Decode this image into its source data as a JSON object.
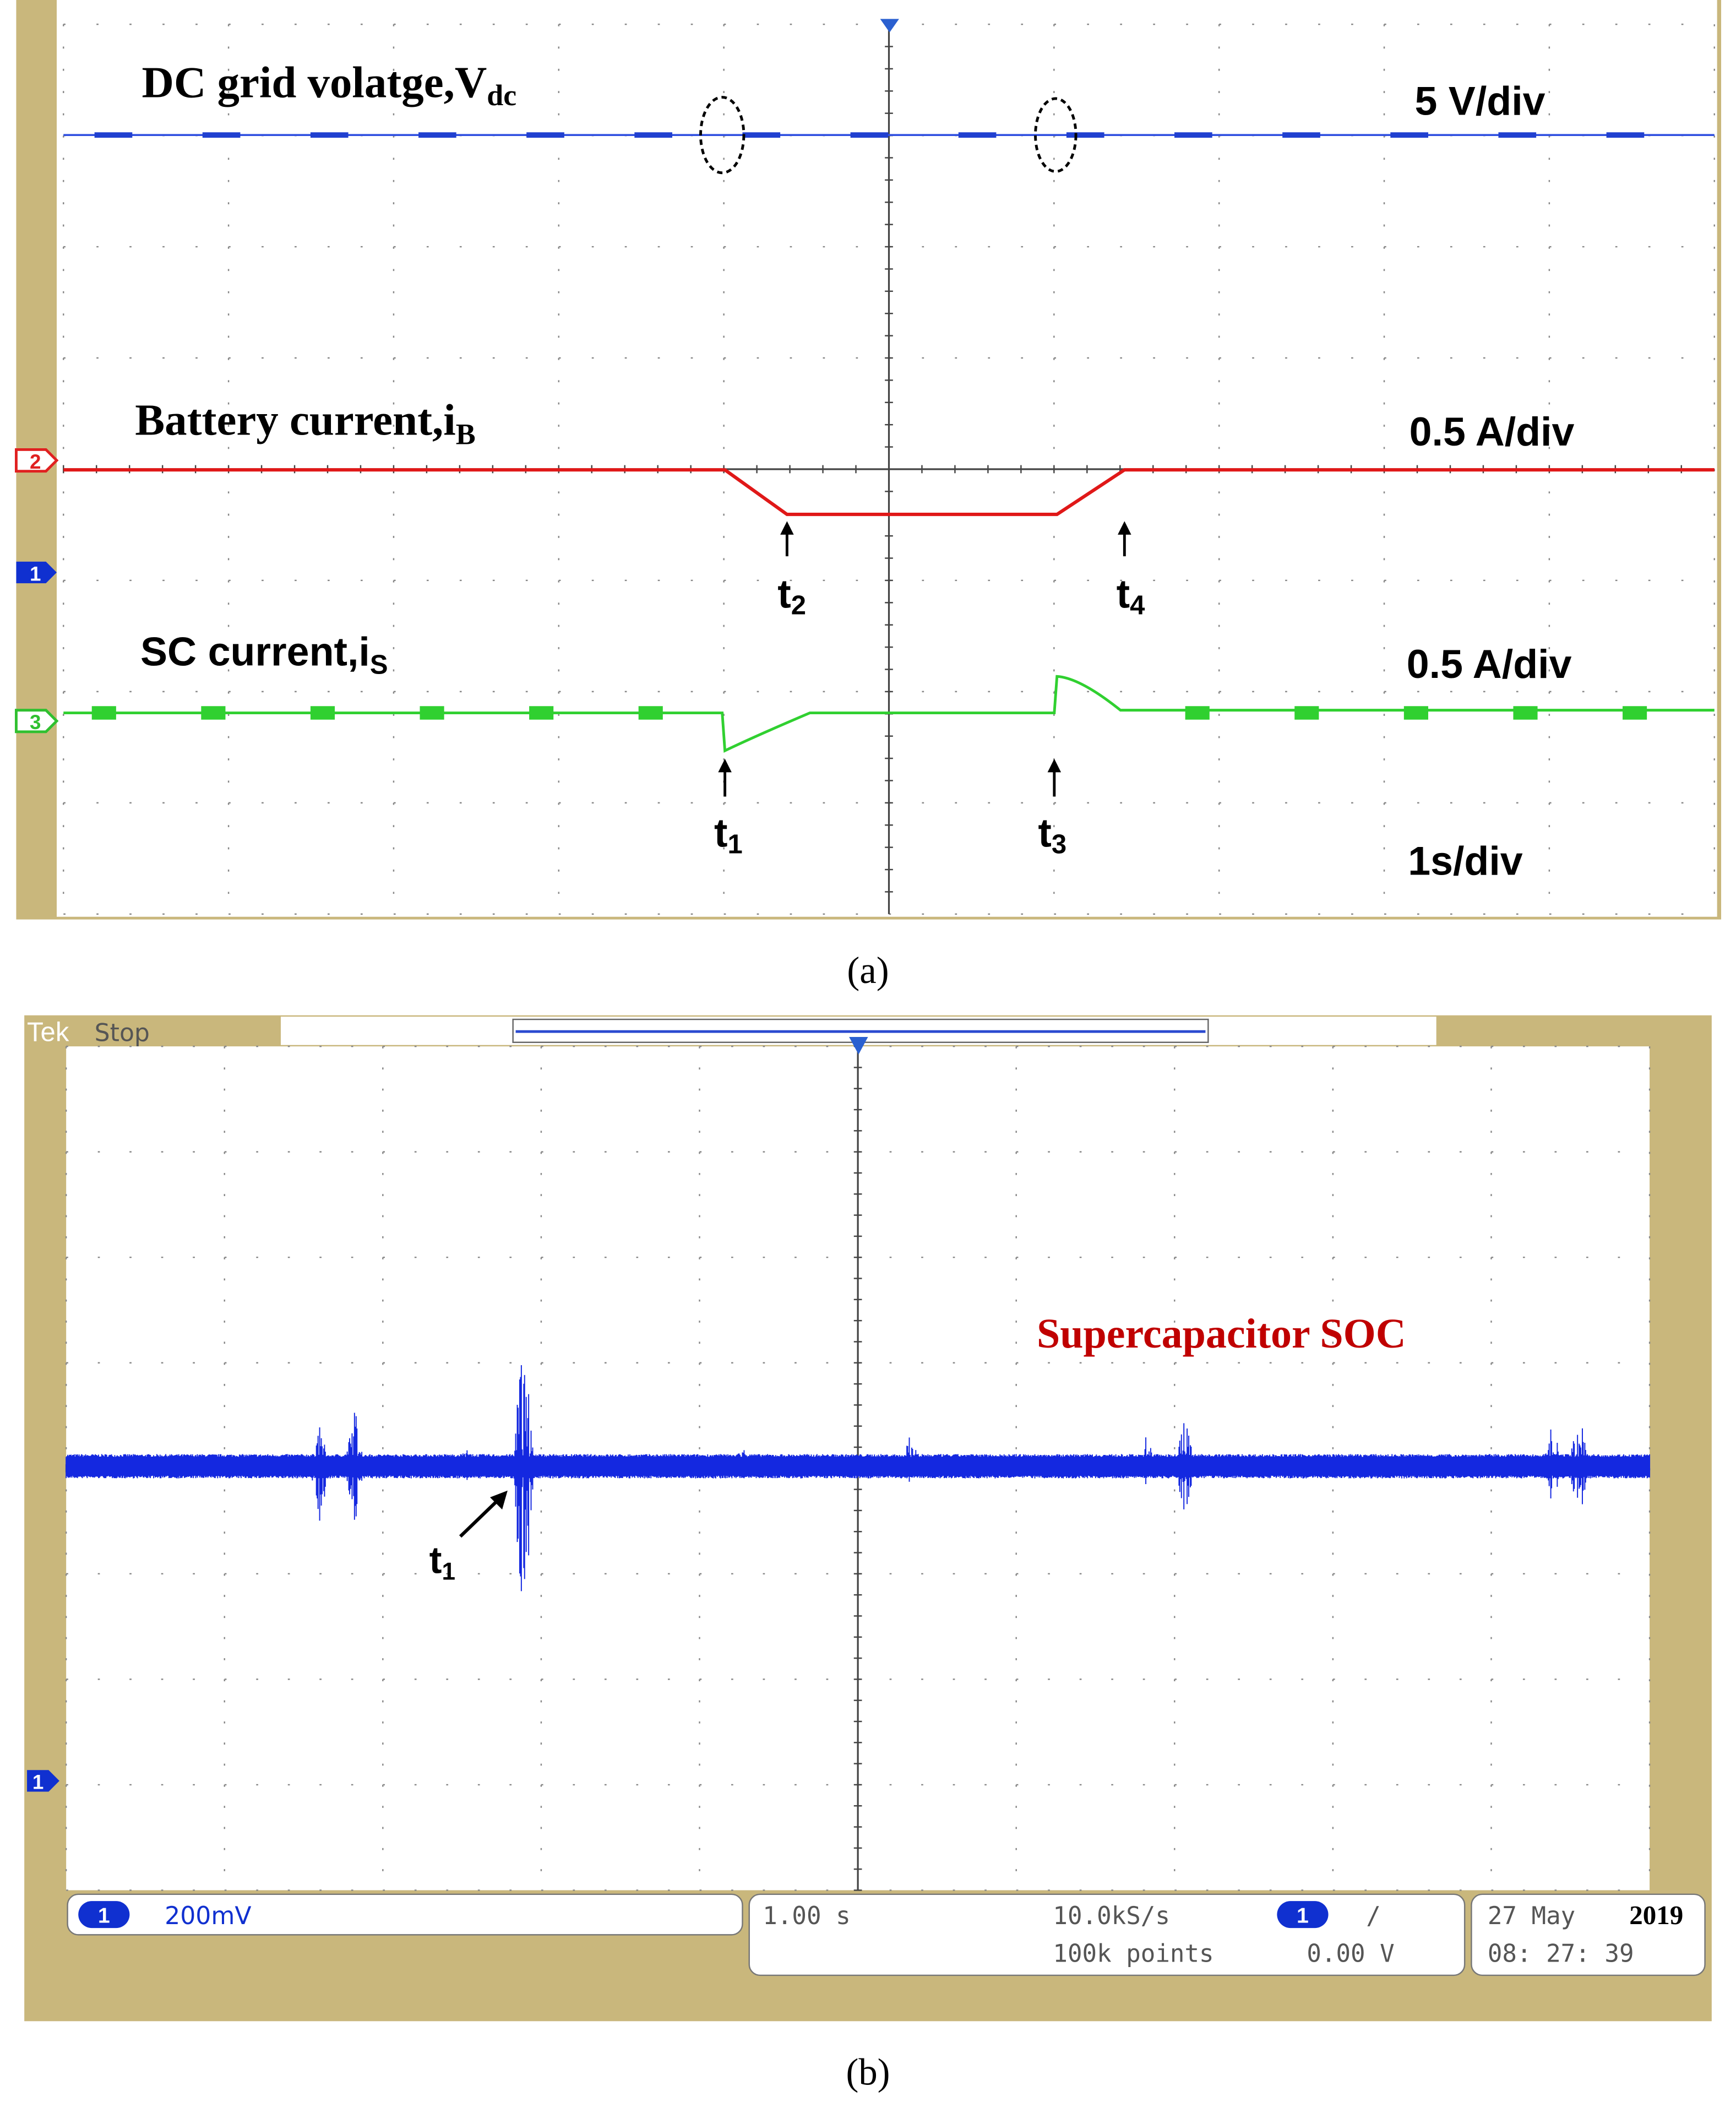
{
  "panel_a": {
    "vdc": {
      "text": "DC grid volatge,V",
      "sub": "dc"
    },
    "vdc_scale": "5 V/div",
    "ib": {
      "text": "Battery current,i",
      "sub": "B"
    },
    "ib_scale": "0.5 A/div",
    "is": {
      "text": "SC current,i",
      "sub": "S"
    },
    "is_scale": "0.5 A/div",
    "time_scale": "1s/div",
    "channels": [
      "2",
      "1",
      "3"
    ],
    "markers": [
      {
        "text": "t",
        "sub": "1"
      },
      {
        "text": "t",
        "sub": "2"
      },
      {
        "text": "t",
        "sub": "3"
      },
      {
        "text": "t",
        "sub": "4"
      }
    ],
    "caption": "(a)"
  },
  "panel_b": {
    "brand": "Tek",
    "state": "Stop",
    "trace_label": "Supercapacitor SOC",
    "marker": {
      "text": "t",
      "sub": "1"
    },
    "channel": "1",
    "status": {
      "channel": "1",
      "volts": "200mV",
      "timebase": "1.00 s",
      "rate": "10.0kS/s",
      "points": "100k points",
      "trigger_channel": "1",
      "trigger_slope": "/",
      "trigger_level": "0.00 V",
      "date": "27 May",
      "year": "2019",
      "time": "08: 27: 39"
    },
    "caption": "(b)"
  }
}
